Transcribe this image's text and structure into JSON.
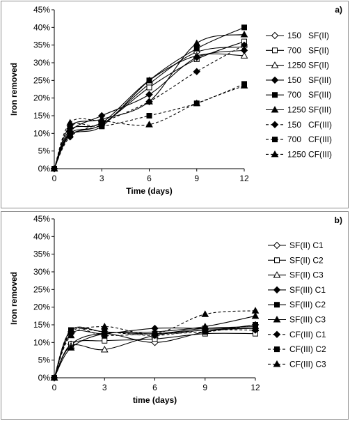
{
  "chart_data": [
    {
      "type": "line",
      "panel_label": "a)",
      "xlabel": "Time (days)",
      "ylabel": "Iron removed",
      "x": [
        0,
        1,
        3,
        6,
        9,
        12
      ],
      "x_ticks": [
        "0",
        "3",
        "6",
        "9",
        "12"
      ],
      "xlim": [
        0,
        12
      ],
      "ylim": [
        0,
        45
      ],
      "y_ticks": [
        "0%",
        "5%",
        "10%",
        "15%",
        "20%",
        "25%",
        "30%",
        "35%",
        "40%",
        "45%"
      ],
      "grid": false,
      "legend_position": "right",
      "series": [
        {
          "name": "150   SF(II)",
          "marker": "diamond-open",
          "dashed": false,
          "values": [
            0,
            10,
            12.5,
            24,
            33,
            34.5
          ]
        },
        {
          "name": "700   SF(II)",
          "marker": "square-open",
          "dashed": false,
          "values": [
            0,
            9.5,
            12.5,
            23,
            31,
            36
          ]
        },
        {
          "name": "1250 SF(II)",
          "marker": "triangle-open",
          "dashed": false,
          "values": [
            0,
            11,
            13,
            25,
            32,
            32
          ]
        },
        {
          "name": "150   SF(III)",
          "marker": "diamond",
          "dashed": false,
          "values": [
            0,
            10.5,
            15,
            21,
            31.5,
            33.5
          ]
        },
        {
          "name": "700   SF(III)",
          "marker": "square",
          "dashed": false,
          "values": [
            0,
            9.5,
            12,
            25,
            34,
            40
          ]
        },
        {
          "name": "1250 SF(III)",
          "marker": "triangle",
          "dashed": false,
          "values": [
            0,
            12,
            14,
            19,
            35.5,
            38
          ]
        },
        {
          "name": "150   CF(III)",
          "marker": "diamond",
          "dashed": true,
          "values": [
            0,
            9,
            13,
            19,
            27.5,
            35
          ]
        },
        {
          "name": "700   CF(III)",
          "marker": "square",
          "dashed": true,
          "values": [
            0,
            12,
            12,
            15,
            18.5,
            24
          ]
        },
        {
          "name": "1250 CF(III)",
          "marker": "triangle",
          "dashed": true,
          "values": [
            0,
            13,
            13.5,
            12.5,
            18.5,
            23.5
          ]
        }
      ]
    },
    {
      "type": "line",
      "panel_label": "b)",
      "xlabel": "time (days)",
      "ylabel": "Iron removed",
      "x": [
        0,
        1,
        3,
        6,
        9,
        12
      ],
      "x_ticks": [
        "0",
        "3",
        "6",
        "9",
        "12"
      ],
      "xlim": [
        0,
        12
      ],
      "ylim": [
        0,
        45
      ],
      "y_ticks": [
        "0%",
        "5%",
        "10%",
        "15%",
        "20%",
        "25%",
        "30%",
        "35%",
        "40%",
        "45%"
      ],
      "grid": false,
      "legend_position": "right",
      "series": [
        {
          "name": "SF(II) C1",
          "marker": "diamond-open",
          "dashed": false,
          "values": [
            0,
            9.5,
            12.5,
            10,
            13,
            15
          ]
        },
        {
          "name": "SF(II) C2",
          "marker": "square-open",
          "dashed": false,
          "values": [
            0,
            9.5,
            10.5,
            11,
            12.5,
            12.5
          ]
        },
        {
          "name": "SF(II) C3",
          "marker": "triangle-open",
          "dashed": false,
          "values": [
            0,
            9,
            8,
            12,
            13.5,
            14
          ]
        },
        {
          "name": "SF(III) C1",
          "marker": "diamond",
          "dashed": false,
          "values": [
            0,
            12.5,
            12.5,
            14,
            14,
            14
          ]
        },
        {
          "name": "SF(III) C2",
          "marker": "square",
          "dashed": false,
          "values": [
            0,
            13.5,
            13,
            12.5,
            14,
            14.5
          ]
        },
        {
          "name": "SF(III) C3",
          "marker": "triangle",
          "dashed": false,
          "values": [
            0,
            8.5,
            12.5,
            13,
            14.5,
            17.5
          ]
        },
        {
          "name": "CF(III) C1",
          "marker": "diamond",
          "dashed": true,
          "values": [
            0,
            13,
            13,
            12,
            13.5,
            13.5
          ]
        },
        {
          "name": "CF(III) C2",
          "marker": "square",
          "dashed": true,
          "values": [
            0,
            13.5,
            12,
            12.5,
            13,
            15
          ]
        },
        {
          "name": "CF(III) C3",
          "marker": "triangle",
          "dashed": true,
          "values": [
            0,
            12,
            14.5,
            12.5,
            18,
            19
          ]
        }
      ]
    }
  ]
}
